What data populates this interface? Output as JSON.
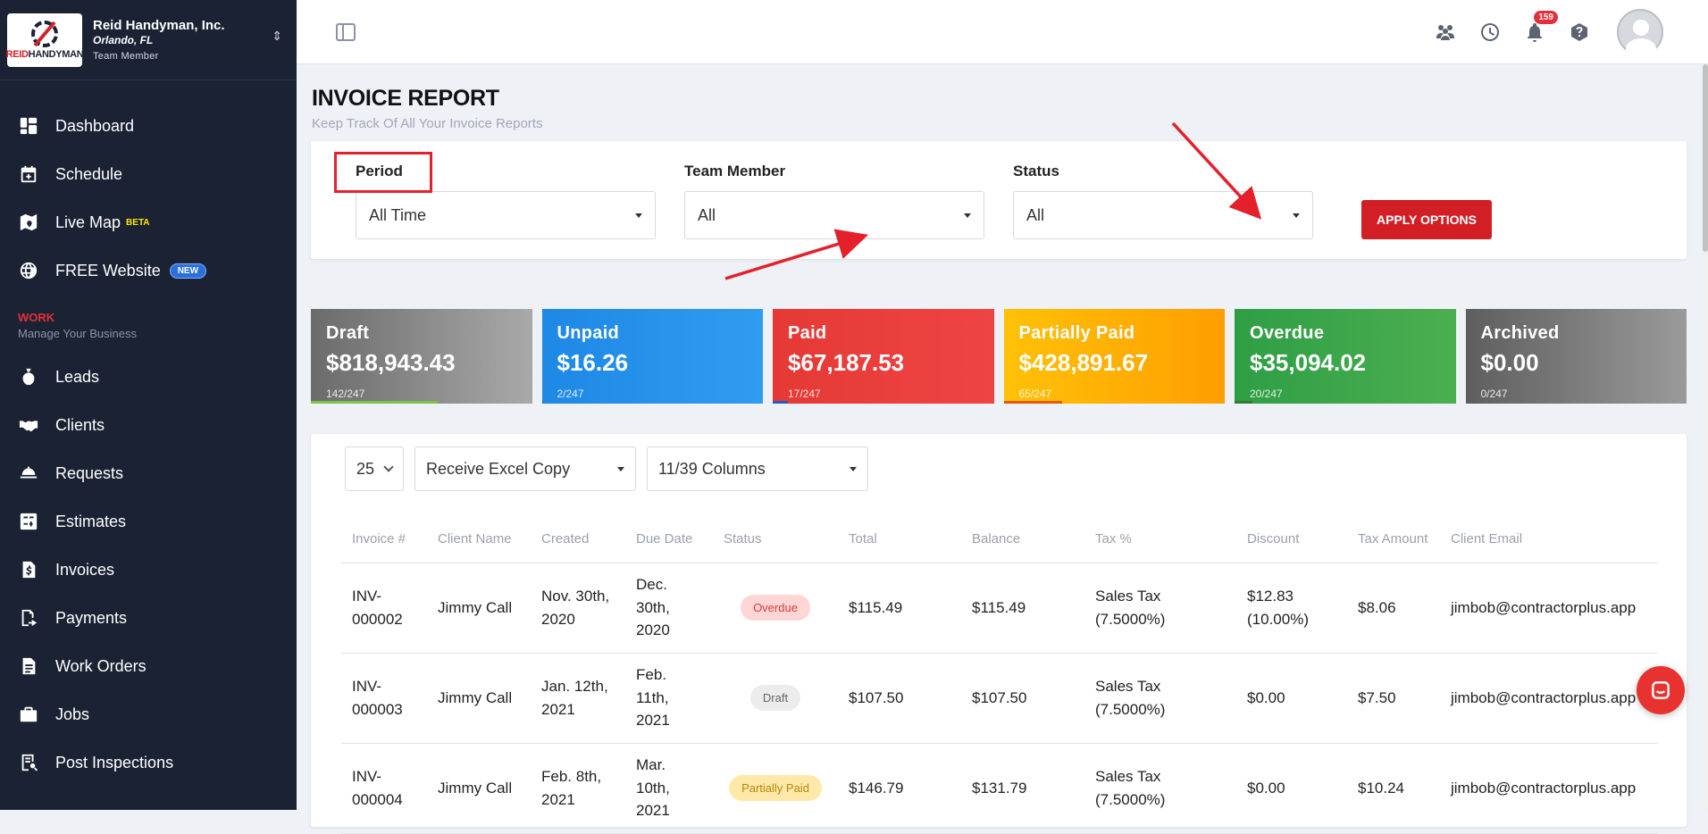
{
  "company": {
    "name": "Reid Handyman, Inc.",
    "city": "Orlando, FL",
    "role": "Team Member",
    "logo_text_red": "REID",
    "logo_text_dark": "HANDYMAN"
  },
  "sidebar": {
    "items": [
      {
        "label": "Dashboard",
        "icon": "dashboard-icon"
      },
      {
        "label": "Schedule",
        "icon": "calendar-icon"
      },
      {
        "label": "Live Map",
        "icon": "map-icon",
        "tag": "BETA"
      },
      {
        "label": "FREE Website",
        "icon": "globe-icon",
        "badge": "NEW"
      }
    ],
    "section_title": "WORK",
    "section_subtitle": "Manage Your Business",
    "work_items": [
      {
        "label": "Leads",
        "icon": "money-bag-icon"
      },
      {
        "label": "Clients",
        "icon": "handshake-icon"
      },
      {
        "label": "Requests",
        "icon": "service-bell-icon"
      },
      {
        "label": "Estimates",
        "icon": "calculator-icon"
      },
      {
        "label": "Invoices",
        "icon": "invoice-icon"
      },
      {
        "label": "Payments",
        "icon": "payment-icon"
      },
      {
        "label": "Work Orders",
        "icon": "work-order-icon"
      },
      {
        "label": "Jobs",
        "icon": "briefcase-icon"
      },
      {
        "label": "Post Inspections",
        "icon": "inspection-icon"
      }
    ]
  },
  "topbar": {
    "notification_count": "159"
  },
  "page": {
    "title": "INVOICE REPORT",
    "subtitle": "Keep Track Of All Your Invoice Reports"
  },
  "filters": {
    "period_label": "Period",
    "period_value": "All Time",
    "team_label": "Team Member",
    "team_value": "All",
    "status_label": "Status",
    "status_value": "All",
    "apply_label": "APPLY OPTIONS"
  },
  "stats": [
    {
      "label": "Draft",
      "value": "$818,943.43",
      "count": "142/247",
      "progress": 0.575,
      "progress_color": "#7cc34a"
    },
    {
      "label": "Unpaid",
      "value": "$16.26",
      "count": "2/247",
      "progress": 0.008,
      "progress_color": "#1565c0"
    },
    {
      "label": "Paid",
      "value": "$67,187.53",
      "count": "17/247",
      "progress": 0.069,
      "progress_color": "#2a58c9"
    },
    {
      "label": "Partially Paid",
      "value": "$428,891.67",
      "count": "65/247",
      "progress": 0.263,
      "progress_color": "#e8590c"
    },
    {
      "label": "Overdue",
      "value": "$35,094.02",
      "count": "20/247",
      "progress": 0.081,
      "progress_color": "#2e7d32"
    },
    {
      "label": "Archived",
      "value": "$0.00",
      "count": "0/247",
      "progress": 0.0,
      "progress_color": "#555555"
    }
  ],
  "table_controls": {
    "per_page": "25",
    "export": "Receive Excel Copy",
    "columns": "11/39 Columns"
  },
  "table": {
    "headers": [
      "Invoice #",
      "Client Name",
      "Created",
      "Due Date",
      "Status",
      "Total",
      "Balance",
      "Tax %",
      "Discount",
      "Tax Amount",
      "Client Email"
    ],
    "rows": [
      {
        "invoice": "INV-000002",
        "client": "Jimmy Call",
        "created": "Nov. 30th, 2020",
        "due": "Dec. 30th, 2020",
        "status": "Overdue",
        "status_kind": "overdue",
        "total": "$115.49",
        "balance": "$115.49",
        "tax": "Sales Tax (7.5000%)",
        "discount": "$12.83 (10.00%)",
        "tax_amount": "$8.06",
        "email": "jimbob@contractorplus.app"
      },
      {
        "invoice": "INV-000003",
        "client": "Jimmy Call",
        "created": "Jan. 12th, 2021",
        "due": "Feb. 11th, 2021",
        "status": "Draft",
        "status_kind": "draft",
        "total": "$107.50",
        "balance": "$107.50",
        "tax": "Sales Tax (7.5000%)",
        "discount": "$0.00",
        "tax_amount": "$7.50",
        "email": "jimbob@contractorplus.app"
      },
      {
        "invoice": "INV-000004",
        "client": "Jimmy Call",
        "created": "Feb. 8th, 2021",
        "due": "Mar. 10th, 2021",
        "status": "Partially Paid",
        "status_kind": "partial",
        "total": "$146.79",
        "balance": "$131.79",
        "tax": "Sales Tax (7.5000%)",
        "discount": "$0.00",
        "tax_amount": "$10.24",
        "email": "jimbob@contractorplus.app"
      }
    ]
  }
}
